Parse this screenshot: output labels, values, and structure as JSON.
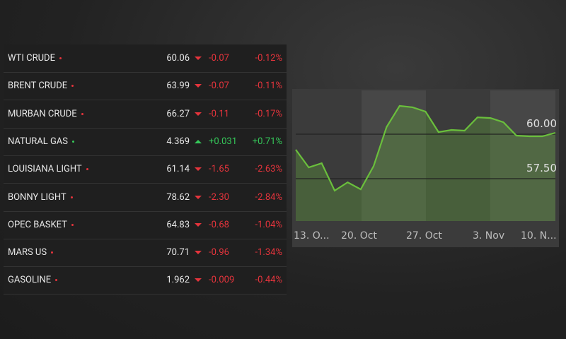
{
  "table": {
    "rows": [
      [
        "WTI CRUDE",
        "60.06",
        "-0.07",
        "-0.12%"
      ],
      [
        "BRENT CRUDE",
        "63.99",
        "-0.07",
        "-0.11%"
      ],
      [
        "MURBAN CRUDE",
        "66.27",
        "-0.11",
        "-0.17%"
      ],
      [
        "NATURAL GAS",
        "4.369",
        "+0.031",
        "+0.71%"
      ],
      [
        "LOUISIANA LIGHT",
        "61.14",
        "-1.65",
        "-2.63%"
      ],
      [
        "BONNY LIGHT",
        "78.62",
        "-2.30",
        "-2.84%"
      ],
      [
        "OPEC BASKET",
        "64.83",
        "-0.68",
        "-1.04%"
      ],
      [
        "MARS US",
        "70.71",
        "-0.96",
        "-1.34%"
      ],
      [
        "GASOLINE",
        "1.962",
        "-0.009",
        "-0.44%"
      ]
    ]
  },
  "chart_data": {
    "type": "area",
    "x_labels": [
      "13. O...",
      "20. Oct",
      "27. Oct",
      "3. Nov",
      "10. N..."
    ],
    "values": [
      59.13,
      58.13,
      58.37,
      56.83,
      57.3,
      56.9,
      58.21,
      60.4,
      61.59,
      61.51,
      61.27,
      60.12,
      60.24,
      60.2,
      60.95,
      60.91,
      60.67,
      59.92,
      59.88,
      59.88,
      60.08
    ],
    "color": "#6abf3c",
    "ylim": [
      55.12,
      62.46
    ],
    "yticks": [
      {
        "value": 57.5,
        "label": "57.50"
      },
      {
        "value": 60,
        "label": "60.00"
      }
    ],
    "grid": true
  }
}
